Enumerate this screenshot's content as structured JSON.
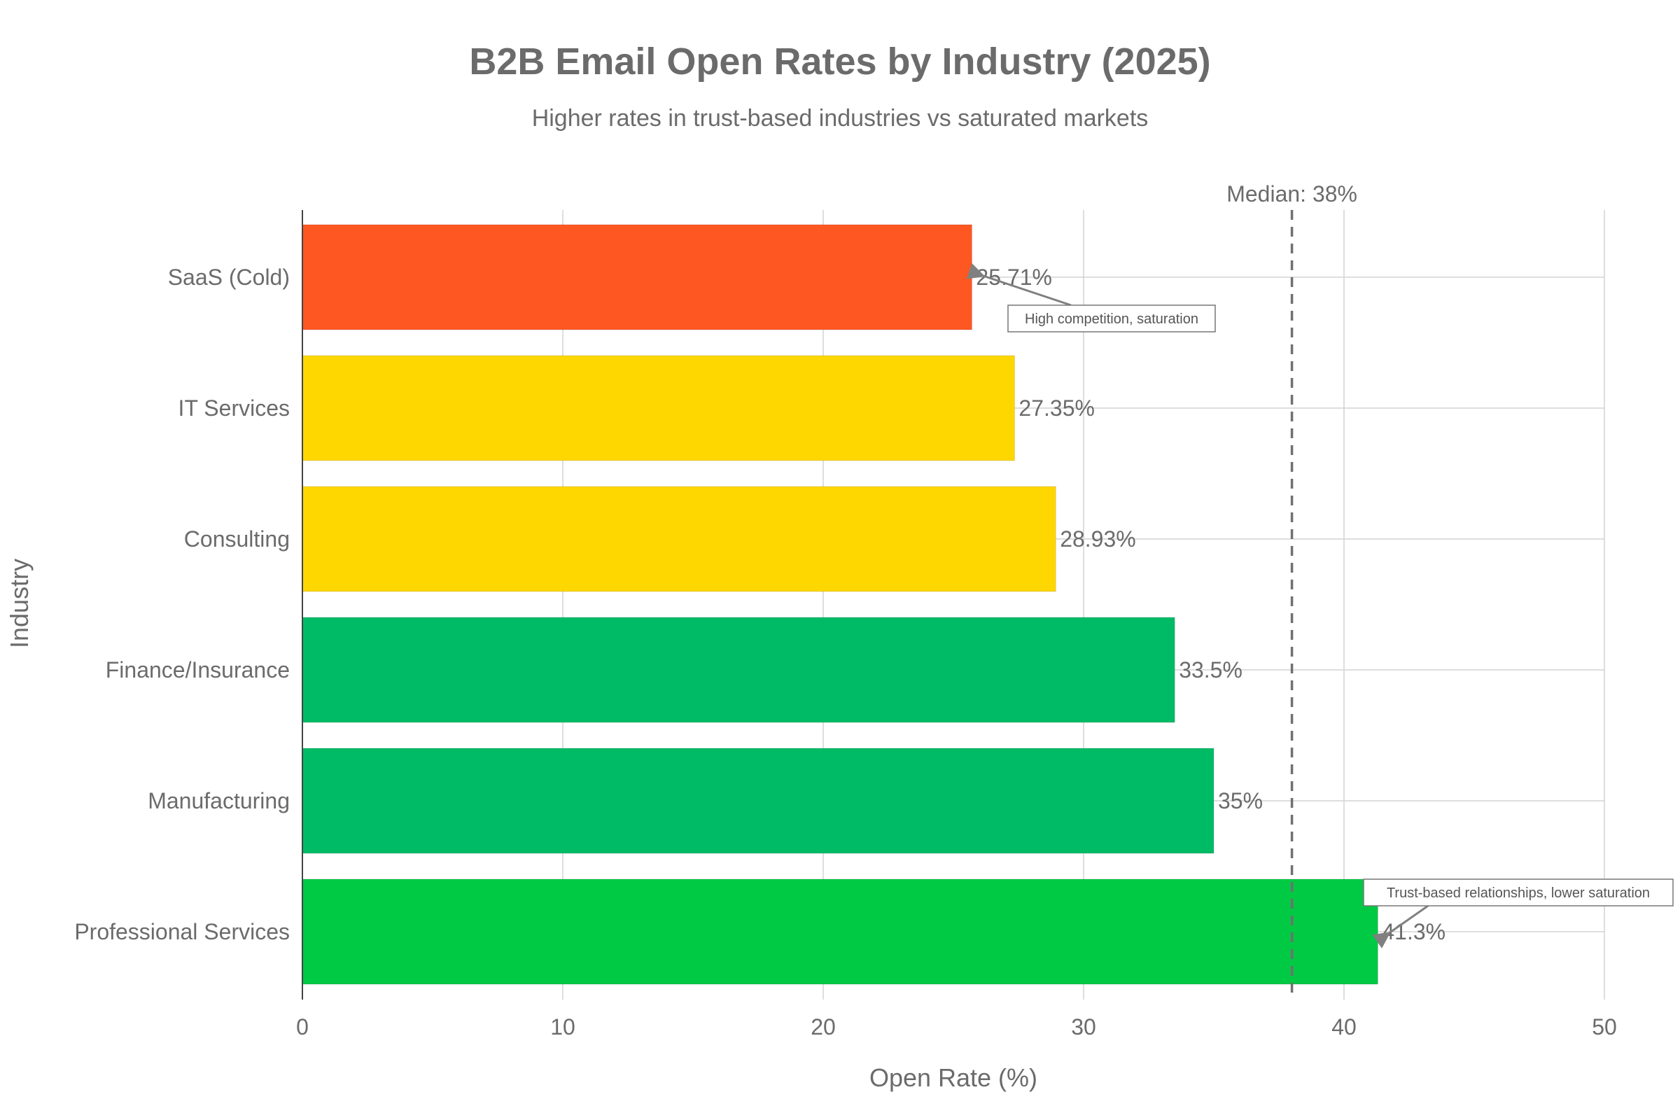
{
  "chart_data": {
    "type": "bar",
    "orientation": "horizontal",
    "title": "B2B Email Open Rates by Industry (2025)",
    "subtitle": "Higher rates in trust-based industries vs saturated markets",
    "xlabel": "Open Rate (%)",
    "ylabel": "Industry",
    "xlim": [
      0,
      50
    ],
    "xticks": [
      0,
      10,
      20,
      30,
      40,
      50
    ],
    "grid": true,
    "categories": [
      "SaaS (Cold)",
      "IT Services",
      "Consulting",
      "Finance/Insurance",
      "Manufacturing",
      "Professional Services"
    ],
    "values": [
      25.71,
      27.35,
      28.93,
      33.5,
      35,
      41.3
    ],
    "value_labels": [
      "25.71%",
      "27.35%",
      "28.93%",
      "33.5%",
      "35%",
      "41.3%"
    ],
    "colors": [
      "#FF5722",
      "#FFD700",
      "#FFD700",
      "#00BB66",
      "#00BB66",
      "#00C944"
    ],
    "reference_line": {
      "value": 38,
      "label": "Median: 38%",
      "style": "dashed",
      "color": "#707070"
    },
    "annotations": [
      {
        "text": "High competition, saturation",
        "category": "SaaS (Cold)",
        "value": 25.71
      },
      {
        "text": "Trust-based relationships, lower saturation",
        "category": "Professional Services",
        "value": 41.3
      }
    ]
  }
}
